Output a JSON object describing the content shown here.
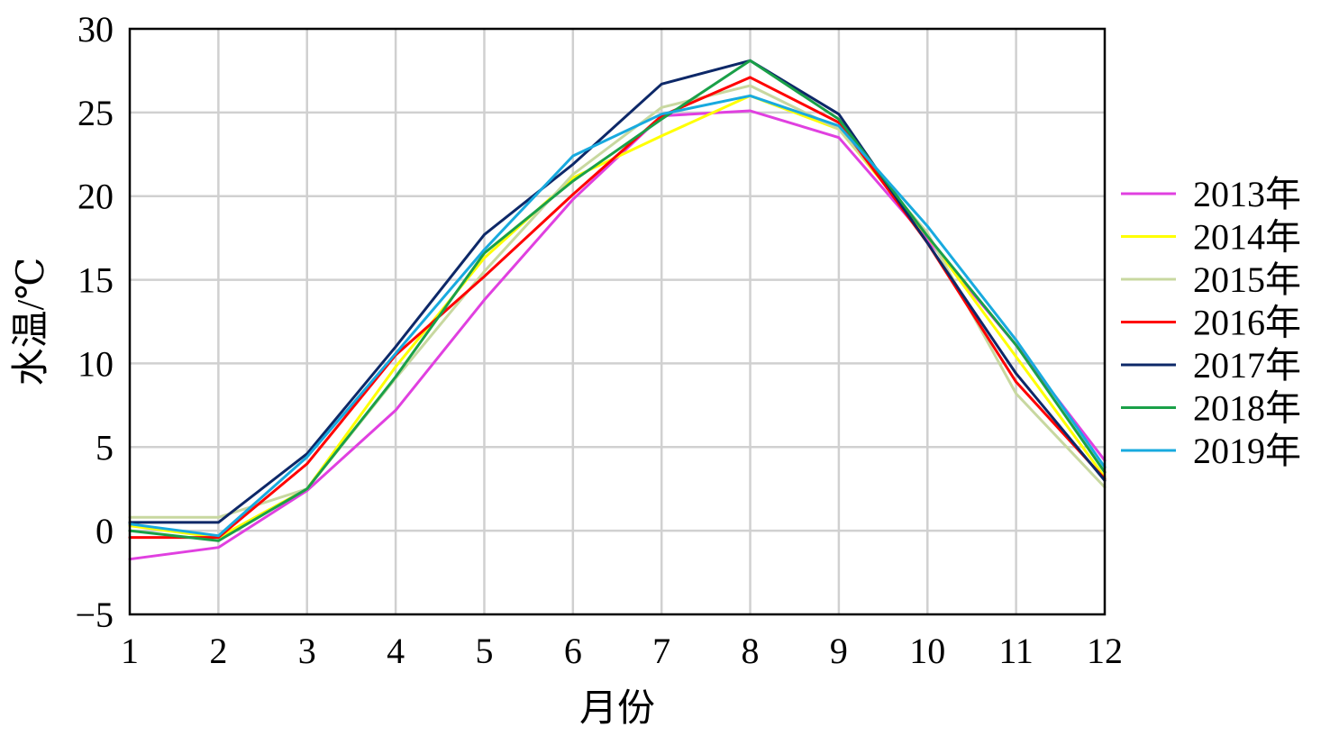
{
  "chart_data": {
    "type": "line",
    "title": "",
    "xlabel": "月份",
    "ylabel": "水温/℃",
    "x": [
      1,
      2,
      3,
      4,
      5,
      6,
      7,
      8,
      9,
      10,
      11,
      12
    ],
    "x_tick_labels": [
      "1",
      "2",
      "3",
      "4",
      "5",
      "6",
      "7",
      "8",
      "9",
      "10",
      "11",
      "12"
    ],
    "xlim": [
      1,
      12
    ],
    "ylim": [
      -5,
      30
    ],
    "y_ticks": [
      -5,
      0,
      5,
      10,
      15,
      20,
      25,
      30
    ],
    "y_tick_labels": [
      "−5",
      "0",
      "5",
      "10",
      "15",
      "20",
      "25",
      "30"
    ],
    "grid": true,
    "legend_position": "right",
    "series": [
      {
        "name": "2013年",
        "color": "#e040e0",
        "values": [
          -1.7,
          -1.0,
          2.4,
          7.2,
          13.8,
          19.8,
          24.8,
          25.1,
          23.5,
          17.4,
          11.1,
          4.2
        ]
      },
      {
        "name": "2014年",
        "color": "#ffff00",
        "values": [
          0.3,
          -0.4,
          2.5,
          9.8,
          16.3,
          21.1,
          23.6,
          26.0,
          24.0,
          17.6,
          10.4,
          3.2
        ]
      },
      {
        "name": "2015年",
        "color": "#c8d8a0",
        "values": [
          0.8,
          0.8,
          2.5,
          9.1,
          15.5,
          21.3,
          25.3,
          26.6,
          24.0,
          17.8,
          8.2,
          2.6
        ]
      },
      {
        "name": "2016年",
        "color": "#ff0000",
        "values": [
          -0.4,
          -0.4,
          4.0,
          10.5,
          15.2,
          20.1,
          24.8,
          27.1,
          24.4,
          17.2,
          8.9,
          3.1
        ]
      },
      {
        "name": "2017年",
        "color": "#0d2868",
        "values": [
          0.5,
          0.5,
          4.6,
          11.0,
          17.7,
          21.9,
          26.7,
          28.1,
          24.9,
          17.2,
          9.4,
          3.0
        ]
      },
      {
        "name": "2018年",
        "color": "#1aa048",
        "values": [
          0.0,
          -0.6,
          2.5,
          9.2,
          16.6,
          20.9,
          24.6,
          28.1,
          24.6,
          17.6,
          11.1,
          3.5
        ]
      },
      {
        "name": "2019年",
        "color": "#18aadf",
        "values": [
          0.4,
          -0.3,
          4.4,
          10.6,
          16.8,
          22.4,
          24.9,
          26.0,
          24.2,
          18.2,
          11.4,
          3.8
        ]
      }
    ]
  }
}
